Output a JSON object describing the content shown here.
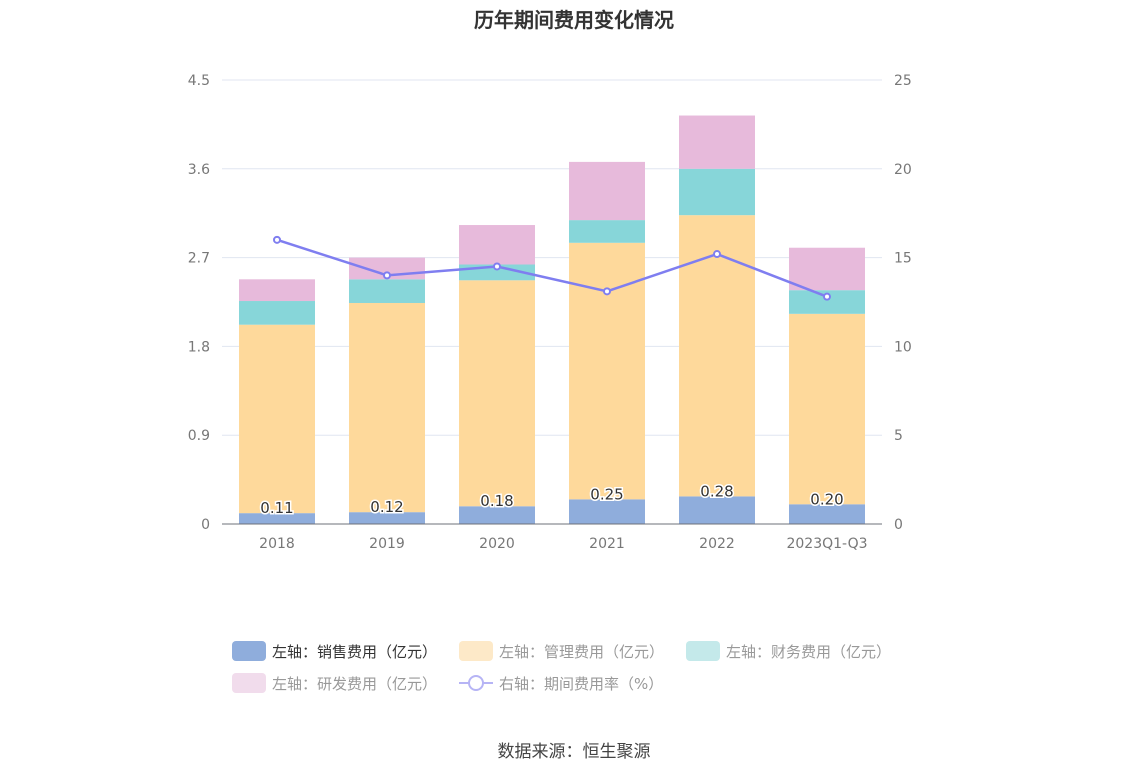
{
  "chart_data": {
    "type": "bar",
    "title": "历年期间费用变化情况",
    "categories": [
      "2018",
      "2019",
      "2020",
      "2021",
      "2022",
      "2023Q1-Q3"
    ],
    "left_axis": {
      "min": 0,
      "max": 4.5,
      "ticks": [
        "0",
        "0.9",
        "1.8",
        "2.7",
        "3.6",
        "4.5"
      ]
    },
    "right_axis": {
      "min": 0,
      "max": 25,
      "ticks": [
        "0",
        "5",
        "10",
        "15",
        "20",
        "25"
      ]
    },
    "grid": true,
    "legend_position": "bottom",
    "series": [
      {
        "name": "左轴：销售费用（亿元）",
        "kind": "bar",
        "axis": "left",
        "color": "#8faddc",
        "values": [
          0.11,
          0.12,
          0.18,
          0.25,
          0.28,
          0.2
        ],
        "labels": [
          "0.11",
          "0.12",
          "0.18",
          "0.25",
          "0.28",
          "0.20"
        ]
      },
      {
        "name": "左轴：管理费用（亿元）",
        "kind": "bar",
        "axis": "left",
        "color": "#fed99b",
        "values": [
          1.91,
          2.12,
          2.29,
          2.6,
          2.85,
          1.93
        ]
      },
      {
        "name": "左轴：财务费用（亿元）",
        "kind": "bar",
        "axis": "left",
        "color": "#87d6d9",
        "values": [
          0.24,
          0.24,
          0.16,
          0.23,
          0.47,
          0.24
        ]
      },
      {
        "name": "左轴：研发费用（亿元）",
        "kind": "bar",
        "axis": "left",
        "color": "#e7badb",
        "values": [
          0.22,
          0.22,
          0.4,
          0.59,
          0.54,
          0.43
        ]
      },
      {
        "name": "右轴：期间费用率（%）",
        "kind": "line",
        "axis": "right",
        "color": "#7f7ef0",
        "values": [
          16.0,
          14.0,
          14.5,
          13.1,
          15.2,
          12.8
        ]
      }
    ]
  },
  "legend": {
    "sales": "左轴：销售费用（亿元）",
    "admin": "左轴：管理费用（亿元）",
    "finance": "左轴：财务费用（亿元）",
    "rd": "左轴：研发费用（亿元）",
    "rate": "右轴：期间费用率（%）"
  },
  "source": "数据来源：恒生聚源"
}
